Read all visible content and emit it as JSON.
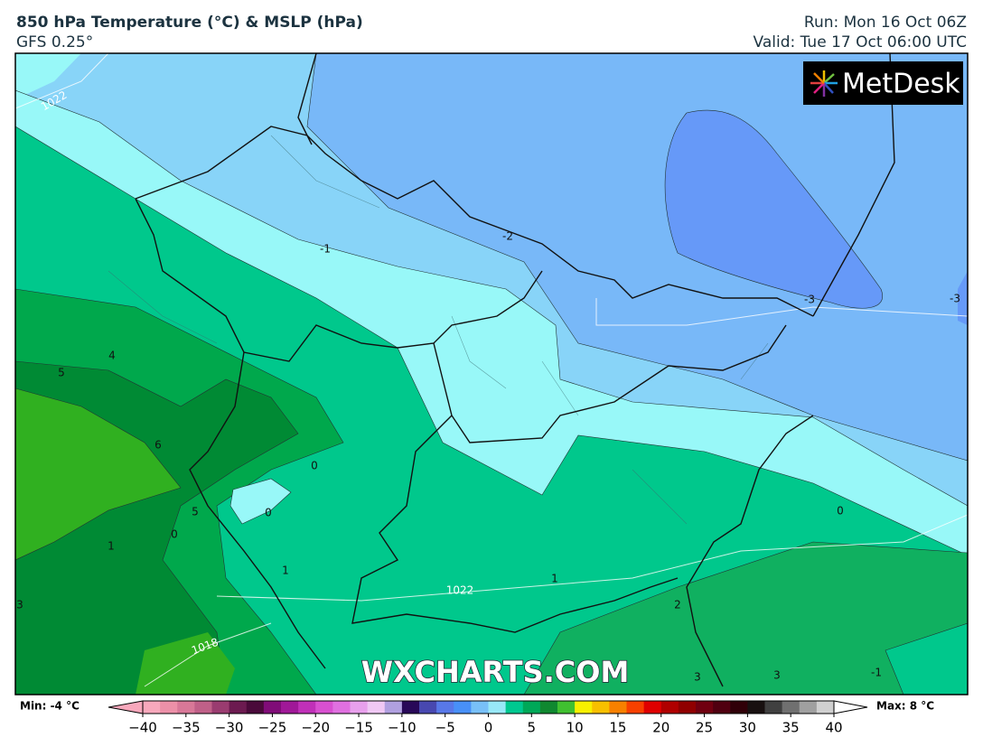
{
  "header": {
    "title": "850 hPa Temperature (°C) & MSLP (hPa)",
    "model": "GFS 0.25°",
    "run": "Run: Mon 16 Oct 06Z",
    "valid": "Valid: Tue 17 Oct 06:00 UTC"
  },
  "logo": "MetDesk",
  "watermark": "WXCHARTS.COM",
  "contour_labels": [
    "-1",
    "-2",
    "-3",
    "-3",
    "0",
    "0",
    "0",
    "0",
    "1",
    "1",
    "1",
    "2",
    "3",
    "3",
    "3",
    "4",
    "5",
    "5",
    "6",
    "-1",
    "1022",
    "1018",
    "1022"
  ],
  "colorbar": {
    "min_label": "Min: -4 °C",
    "max_label": "Max: 8 °C",
    "range": [
      -40,
      40
    ],
    "colors": [
      "#f8a8bc",
      "#ec90a8",
      "#d87898",
      "#c06088",
      "#9a3c70",
      "#6c1a50",
      "#4a0a3a",
      "#800c78",
      "#a01898",
      "#c030b8",
      "#d850d0",
      "#e070e0",
      "#e8a0ec",
      "#f0c8f4",
      "#b0a0e0",
      "#280858",
      "#4848b0",
      "#5878e8",
      "#4890f8",
      "#78c0f8",
      "#98e8f8",
      "#00c890",
      "#00a858",
      "#108830",
      "#40c030",
      "#f8f000",
      "#f8c000",
      "#f88000",
      "#f84000",
      "#e00000",
      "#b00000",
      "#900000",
      "#700010",
      "#500010",
      "#300008",
      "#181010",
      "#404040",
      "#707070",
      "#a0a0a0",
      "#d0d0d0"
    ],
    "ticks": [
      {
        "value": -40,
        "label": "−40"
      },
      {
        "value": -35,
        "label": "−35"
      },
      {
        "value": -30,
        "label": "−30"
      },
      {
        "value": -25,
        "label": "−25"
      },
      {
        "value": -20,
        "label": "−20"
      },
      {
        "value": -15,
        "label": "−15"
      },
      {
        "value": -10,
        "label": "−10"
      },
      {
        "value": -5,
        "label": "−5"
      },
      0,
      5,
      10,
      15,
      20,
      25,
      30,
      35,
      40
    ]
  }
}
